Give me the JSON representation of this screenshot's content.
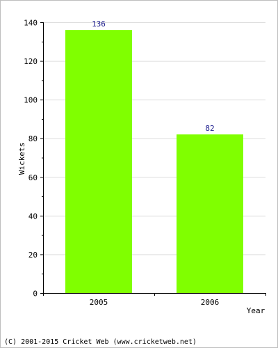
{
  "chart_data": {
    "type": "bar",
    "categories": [
      "2005",
      "2006"
    ],
    "values": [
      136,
      82
    ],
    "data_labels": [
      "136",
      "82"
    ],
    "title": "",
    "xlabel": "Year",
    "ylabel": "Wickets",
    "ylim": [
      0,
      140
    ],
    "yticks": [
      0,
      20,
      40,
      60,
      80,
      100,
      120,
      140
    ],
    "grid": true,
    "legend": "none",
    "colors": {
      "bar": "#80ff00",
      "data_label": "#1a1a8c",
      "axis": "#000000",
      "grid": "#dddddd",
      "text": "#000000"
    }
  },
  "footer": {
    "copyright": "(C) 2001-2015 Cricket Web (www.cricketweb.net)"
  }
}
